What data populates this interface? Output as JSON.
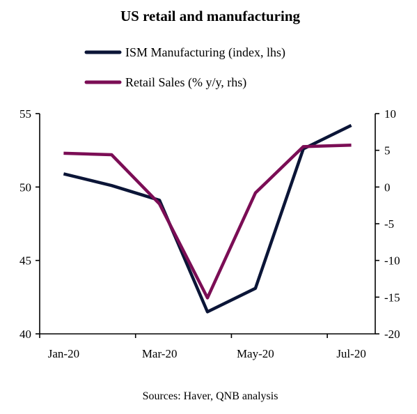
{
  "chart_data": {
    "type": "line",
    "title": "US retail and manufacturing",
    "source": "Sources: Haver, QNB analysis",
    "x": [
      "Jan-20",
      "Feb-20",
      "Mar-20",
      "Apr-20",
      "May-20",
      "Jun-20",
      "Jul-20"
    ],
    "x_tick_labels": [
      "Jan-20",
      "Mar-20",
      "May-20",
      "Jul-20"
    ],
    "series": [
      {
        "name": "ISM Manufacturing (index, lhs)",
        "axis": "left",
        "color": "#0b1537",
        "values": [
          50.9,
          50.1,
          49.1,
          41.5,
          43.1,
          52.6,
          54.2
        ]
      },
      {
        "name": "Retail Sales (% y/y, rhs)",
        "axis": "right",
        "color": "#7b0d55",
        "values": [
          4.6,
          4.4,
          -2.3,
          -15.1,
          -0.8,
          5.5,
          5.7
        ]
      }
    ],
    "y_left": {
      "lim": [
        40,
        55
      ],
      "ticks": [
        40,
        45,
        50,
        55
      ]
    },
    "y_right": {
      "lim": [
        -20,
        10
      ],
      "ticks": [
        -20,
        -15,
        -10,
        -5,
        0,
        5,
        10
      ]
    },
    "grid": false,
    "legend": "top"
  }
}
